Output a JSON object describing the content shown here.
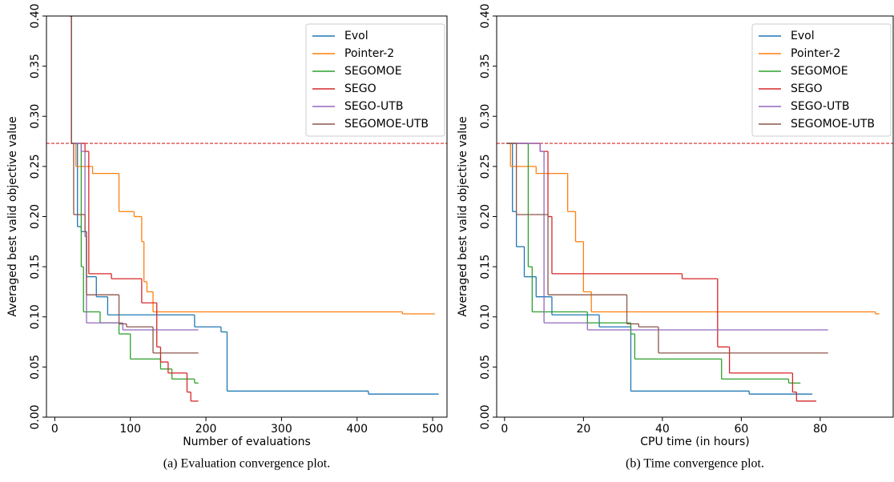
{
  "chart_data": [
    {
      "type": "step",
      "caption": "(a) Evaluation convergence plot.",
      "xlabel": "Number of evaluations",
      "ylabel": "Averaged best valid objective value",
      "xlim": [
        -11,
        519
      ],
      "ylim": [
        0,
        0.4
      ],
      "xticks": [
        0,
        100,
        200,
        300,
        400,
        500
      ],
      "yticks": [
        {
          "value": 0,
          "label": "0.00"
        },
        {
          "value": 0.05,
          "label": "0.05"
        },
        {
          "value": 0.1,
          "label": "0.10"
        },
        {
          "value": 0.15,
          "label": "0.15"
        },
        {
          "value": 0.2,
          "label": "0.20"
        },
        {
          "value": 0.25,
          "label": "0.25"
        },
        {
          "value": 0.3,
          "label": "0.30"
        },
        {
          "value": 0.35,
          "label": "0.35"
        },
        {
          "value": 0.4,
          "label": "0.40"
        }
      ],
      "hline": {
        "value": 0.273,
        "color": "#d62728"
      },
      "legend": "upper right",
      "series": [
        {
          "name": "Evol",
          "color": "#1f77b4",
          "x": [
            20,
            22,
            30,
            35,
            42,
            55,
            70,
            185,
            220,
            228,
            415,
            508
          ],
          "values": [
            0.4,
            0.273,
            0.19,
            0.185,
            0.14,
            0.12,
            0.102,
            0.09,
            0.085,
            0.026,
            0.023,
            0.023
          ]
        },
        {
          "name": "Pointer-2",
          "color": "#ff7f0e",
          "x": [
            20,
            22,
            28,
            50,
            85,
            105,
            115,
            118,
            122,
            130,
            460,
            503
          ],
          "values": [
            0.4,
            0.273,
            0.25,
            0.243,
            0.205,
            0.2,
            0.175,
            0.135,
            0.125,
            0.105,
            0.103,
            0.103
          ]
        },
        {
          "name": "SEGOMOE",
          "color": "#2ca02c",
          "x": [
            20,
            22,
            35,
            38,
            60,
            85,
            100,
            140,
            155,
            185,
            190
          ],
          "values": [
            0.4,
            0.273,
            0.15,
            0.105,
            0.094,
            0.083,
            0.058,
            0.048,
            0.038,
            0.034,
            0.034
          ]
        },
        {
          "name": "SEGO",
          "color": "#d62728",
          "x": [
            20,
            22,
            40,
            45,
            75,
            115,
            135,
            140,
            150,
            175,
            180,
            190
          ],
          "values": [
            0.4,
            0.273,
            0.265,
            0.143,
            0.138,
            0.114,
            0.07,
            0.055,
            0.044,
            0.025,
            0.016,
            0.016
          ]
        },
        {
          "name": "SEGO-UTB",
          "color": "#9467bd",
          "x": [
            20,
            22,
            35,
            40,
            42,
            90,
            190
          ],
          "values": [
            0.4,
            0.273,
            0.265,
            0.18,
            0.094,
            0.087,
            0.087
          ]
        },
        {
          "name": "SEGOMOE-UTB",
          "color": "#8c564b",
          "x": [
            20,
            22,
            25,
            40,
            42,
            85,
            95,
            130,
            190
          ],
          "values": [
            0.4,
            0.273,
            0.202,
            0.185,
            0.122,
            0.093,
            0.09,
            0.064,
            0.064
          ]
        }
      ]
    },
    {
      "type": "step",
      "caption": "(b) Time convergence plot.",
      "xlabel": "CPU time (in hours)",
      "ylabel": "Averaged best valid objective value",
      "xlim": [
        -2,
        98.5
      ],
      "ylim": [
        0,
        0.4
      ],
      "xticks": [
        0,
        20,
        40,
        60,
        80
      ],
      "yticks": [
        {
          "value": 0,
          "label": "0.00"
        },
        {
          "value": 0.05,
          "label": "0.05"
        },
        {
          "value": 0.1,
          "label": "0.10"
        },
        {
          "value": 0.15,
          "label": "0.15"
        },
        {
          "value": 0.2,
          "label": "0.20"
        },
        {
          "value": 0.25,
          "label": "0.25"
        },
        {
          "value": 0.3,
          "label": "0.30"
        },
        {
          "value": 0.35,
          "label": "0.35"
        },
        {
          "value": 0.4,
          "label": "0.40"
        }
      ],
      "hline": {
        "value": 0.273,
        "color": "#d62728"
      },
      "legend": "upper right",
      "series": [
        {
          "name": "Evol",
          "color": "#1f77b4",
          "x": [
            0.5,
            2,
            3,
            5,
            8,
            12,
            24,
            32,
            62,
            78
          ],
          "values": [
            0.273,
            0.205,
            0.17,
            0.14,
            0.12,
            0.102,
            0.09,
            0.026,
            0.023,
            0.023
          ]
        },
        {
          "name": "Pointer-2",
          "color": "#ff7f0e",
          "x": [
            0.5,
            1.5,
            8,
            16,
            18,
            20,
            22,
            94,
            95
          ],
          "values": [
            0.273,
            0.25,
            0.243,
            0.205,
            0.175,
            0.125,
            0.105,
            0.103,
            0.103
          ]
        },
        {
          "name": "SEGOMOE",
          "color": "#2ca02c",
          "x": [
            0.5,
            6,
            7,
            21,
            32,
            33,
            55,
            72,
            75
          ],
          "values": [
            0.273,
            0.15,
            0.105,
            0.094,
            0.083,
            0.058,
            0.038,
            0.034,
            0.034
          ]
        },
        {
          "name": "SEGO",
          "color": "#d62728",
          "x": [
            0.5,
            9,
            11,
            12,
            45,
            54,
            57,
            73,
            74,
            79
          ],
          "values": [
            0.273,
            0.265,
            0.2,
            0.143,
            0.138,
            0.07,
            0.044,
            0.025,
            0.016,
            0.016
          ]
        },
        {
          "name": "SEGO-UTB",
          "color": "#9467bd",
          "x": [
            0.5,
            9,
            10,
            21,
            82
          ],
          "values": [
            0.273,
            0.265,
            0.094,
            0.087,
            0.087
          ]
        },
        {
          "name": "SEGOMOE-UTB",
          "color": "#8c564b",
          "x": [
            0.5,
            3,
            11,
            31,
            34,
            39,
            82
          ],
          "values": [
            0.273,
            0.202,
            0.122,
            0.093,
            0.09,
            0.064,
            0.064
          ]
        }
      ]
    }
  ]
}
